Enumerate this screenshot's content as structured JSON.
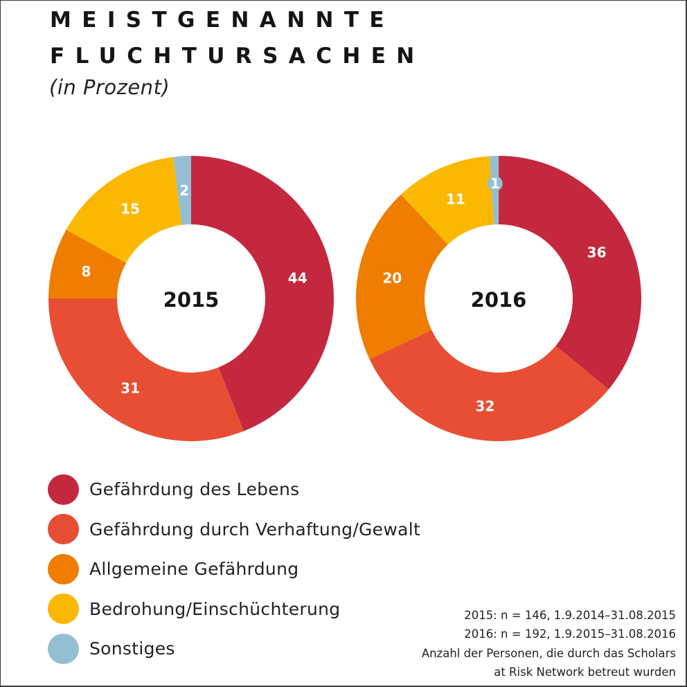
{
  "header": {
    "title_line_1": "MEISTGENANNTE",
    "title_line_2": "FLUCHTURSACHEN",
    "subtitle": "(in Prozent)"
  },
  "categories": [
    {
      "label": "Gefährdung des Lebens",
      "color": "#C4283F"
    },
    {
      "label": "Gefährdung durch Verhaftung/Gewalt",
      "color": "#E84E33"
    },
    {
      "label": "Allgemeine Gefährdung",
      "color": "#EF7D00"
    },
    {
      "label": "Bedrohung/Einschüchterung",
      "color": "#FBB800"
    },
    {
      "label": "Sonstiges",
      "color": "#94BFD3"
    }
  ],
  "chart_data": [
    {
      "type": "pie",
      "variant": "donut",
      "title": "2015",
      "categories": [
        "Gefährdung des Lebens",
        "Gefährdung durch Verhaftung/Gewalt",
        "Allgemeine Gefährdung",
        "Bedrohung/Einschüchterung",
        "Sonstiges"
      ],
      "values": [
        44,
        31,
        8,
        15,
        2
      ],
      "unit": "%",
      "start": "12 o'clock",
      "direction": "clockwise"
    },
    {
      "type": "pie",
      "variant": "donut",
      "title": "2016",
      "categories": [
        "Gefährdung des Lebens",
        "Gefährdung durch Verhaftung/Gewalt",
        "Allgemeine Gefährdung",
        "Bedrohung/Einschüchterung",
        "Sonstiges"
      ],
      "values": [
        36,
        32,
        20,
        11,
        1
      ],
      "unit": "%",
      "start": "12 o'clock",
      "direction": "clockwise"
    }
  ],
  "legend": {
    "placement": "bottom-left"
  },
  "footnote": {
    "lines": [
      "2015: n = 146, 1.9.2014–31.08.2015",
      "2016: n = 192, 1.9.2015–31.08.2016",
      "Anzahl der Personen, die durch das Scholars",
      "at Risk Network betreut wurden"
    ]
  }
}
